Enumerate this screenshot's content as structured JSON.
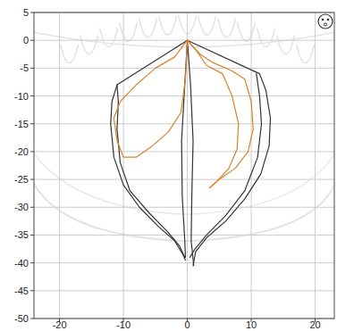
{
  "chart_data": {
    "type": "line",
    "xlim": [
      -24,
      23
    ],
    "ylim": [
      -50,
      5
    ],
    "xticks": [
      -20,
      -10,
      0,
      10,
      20
    ],
    "yticks": [
      5,
      0,
      -5,
      -10,
      -15,
      -20,
      -25,
      -30,
      -35,
      -40,
      -45,
      -50
    ],
    "grid": true,
    "series": [
      {
        "color": "#333333",
        "x": [
          0,
          -11,
          -11.8,
          -12,
          -11.5,
          -10,
          -7.5,
          -4.5,
          -2,
          -0.7,
          -0.3
        ],
        "values": [
          0,
          -8,
          -11,
          -15,
          -21,
          -26,
          -30,
          -33.5,
          -36,
          -38.5,
          -39.5
        ]
      },
      {
        "color": "#333333",
        "x": [
          -11,
          -10.8,
          -11,
          -10.5,
          -9,
          -6,
          -3,
          -1.2,
          -0.4
        ],
        "values": [
          -8,
          -11,
          -16,
          -22,
          -27,
          -31,
          -34.5,
          -37,
          -39
        ]
      },
      {
        "color": "#333333",
        "x": [
          0,
          11.3,
          12.3,
          13,
          12.8,
          11.5,
          9,
          6,
          3,
          1.3,
          0.9
        ],
        "values": [
          0,
          -6,
          -9,
          -14,
          -19,
          -24,
          -28.5,
          -32.5,
          -35.5,
          -38,
          -40.5
        ]
      },
      {
        "color": "#333333",
        "x": [
          10.8,
          11.3,
          11.6,
          11,
          9,
          6,
          3,
          1.2,
          0.4
        ],
        "values": [
          -6,
          -10,
          -15,
          -21,
          -27,
          -31.5,
          -35,
          -37.5,
          -39
        ]
      },
      {
        "color": "#333333",
        "x": [
          0,
          -0.4,
          -0.9,
          -0.8,
          -0.4,
          -0.3
        ],
        "values": [
          0,
          -8,
          -18,
          -28,
          -36,
          -39
        ]
      },
      {
        "color": "#333333",
        "x": [
          0,
          0.5,
          0.9,
          0.7,
          0.6,
          1
        ],
        "values": [
          0,
          -8,
          -18,
          -28,
          -36,
          -40.5
        ]
      },
      {
        "color": "#d9822b",
        "x": [
          0,
          -2,
          -5,
          -8,
          -10.5,
          -11.5,
          -11,
          -10,
          -8,
          -5.5,
          -3,
          -1,
          -0.3,
          0
        ],
        "values": [
          0,
          -3,
          -5,
          -8,
          -11,
          -14,
          -18,
          -21,
          -21,
          -19,
          -16.5,
          -13,
          -7,
          0
        ]
      },
      {
        "color": "#d9822b",
        "x": [
          0,
          2,
          4,
          7,
          9,
          10,
          10.3,
          9.5,
          7.5,
          5,
          3.5
        ],
        "values": [
          0,
          -2.5,
          -4,
          -5.5,
          -7,
          -11,
          -16,
          -20,
          -23,
          -25,
          -26.5
        ]
      },
      {
        "color": "#d9822b",
        "x": [
          0,
          1.5,
          3,
          5.5,
          7,
          8,
          7.8,
          6.5,
          4.5,
          3.5
        ],
        "values": [
          0,
          -2,
          -4.5,
          -6,
          -10,
          -15,
          -19.5,
          -23,
          -25.5,
          -26.5
        ]
      }
    ]
  }
}
